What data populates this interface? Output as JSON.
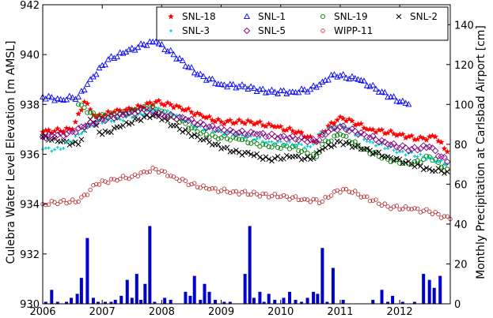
{
  "chart_data": {
    "type": "scatter",
    "title": "",
    "xlabel": "",
    "ylabel": "Culebra Water Level Elevation [m AMSL]",
    "y2label": "Monthly Precipitation at Carlsbad Airport [cm]",
    "xlim": [
      2006.0,
      2012.85
    ],
    "ylim": [
      930,
      942
    ],
    "y2lim": [
      0,
      150
    ],
    "xticks": [
      2006,
      2007,
      2008,
      2009,
      2010,
      2011,
      2012
    ],
    "yticks": [
      930,
      932,
      934,
      936,
      938,
      940,
      942
    ],
    "y2ticks": [
      0,
      20,
      40,
      60,
      80,
      100,
      120,
      140
    ],
    "grid": false,
    "legend_position": "top-right",
    "series": [
      {
        "name": "SNL-18",
        "marker": "star",
        "color": "#ff0000",
        "x": [
          2006.0,
          2006.5,
          2006.7,
          2006.9,
          2007.2,
          2007.5,
          2007.9,
          2008.3,
          2008.7,
          2009.0,
          2009.5,
          2009.9,
          2010.3,
          2010.6,
          2010.7,
          2011.0,
          2011.5,
          2012.0,
          2012.3,
          2012.6,
          2012.8
        ],
        "y": [
          936.9,
          937.0,
          938.1,
          937.5,
          937.7,
          937.8,
          938.1,
          937.9,
          937.5,
          937.3,
          937.3,
          937.1,
          936.9,
          936.5,
          936.9,
          937.5,
          937.0,
          936.8,
          936.6,
          936.7,
          936.1
        ]
      },
      {
        "name": "SNL-1",
        "marker": "triangle",
        "color": "#0000ff",
        "x": [
          2006.0,
          2006.3,
          2006.6,
          2006.8,
          2007.1,
          2007.4,
          2007.7,
          2007.9,
          2008.2,
          2008.6,
          2009.0,
          2009.4,
          2009.8,
          2010.2,
          2010.5,
          2010.7,
          2010.9,
          2011.3,
          2011.7,
          2012.0,
          2012.15
        ],
        "y": [
          938.3,
          938.2,
          938.3,
          939.0,
          939.8,
          940.1,
          940.4,
          940.5,
          940.0,
          939.2,
          938.8,
          938.7,
          938.5,
          938.5,
          938.6,
          938.9,
          939.2,
          939.0,
          938.5,
          938.1,
          938.0
        ]
      },
      {
        "name": "SNL-19",
        "marker": "circle",
        "color": "#008000",
        "x": [
          2006.6,
          2006.9,
          2007.3,
          2007.8,
          2008.2,
          2008.6,
          2008.9,
          2009.3,
          2009.8,
          2010.2,
          2010.6,
          2010.7,
          2011.0,
          2011.4,
          2011.8,
          2012.2,
          2012.5,
          2012.8
        ],
        "y": [
          938.0,
          937.5,
          937.6,
          937.9,
          937.5,
          936.9,
          936.7,
          936.6,
          936.3,
          936.3,
          935.9,
          936.4,
          936.8,
          936.2,
          935.8,
          935.6,
          935.9,
          935.4
        ]
      },
      {
        "name": "SNL-2",
        "marker": "x",
        "color": "#000000",
        "x": [
          2006.0,
          2006.3,
          2006.6,
          2006.8,
          2007.0,
          2007.3,
          2007.6,
          2007.9,
          2008.3,
          2008.6,
          2008.9,
          2009.2,
          2009.5,
          2009.8,
          2010.2,
          2010.5,
          2010.7,
          2011.0,
          2011.4,
          2011.8,
          2012.2,
          2012.5,
          2012.8
        ],
        "y": [
          936.7,
          936.5,
          936.4,
          937.4,
          936.8,
          937.1,
          937.4,
          937.6,
          937.0,
          936.7,
          936.4,
          936.1,
          936.0,
          935.8,
          935.9,
          935.8,
          936.2,
          936.5,
          936.2,
          935.9,
          935.6,
          935.4,
          935.3
        ]
      },
      {
        "name": "SNL-3",
        "marker": "dot",
        "color": "#00cccc",
        "x": [
          2006.0,
          2006.3,
          2006.6,
          2006.9,
          2007.3,
          2007.6,
          2007.9,
          2008.2,
          2008.6,
          2008.9,
          2009.3,
          2009.8,
          2010.2,
          2010.5,
          2010.7,
          2011.0,
          2011.5,
          2012.0,
          2012.4,
          2012.8
        ],
        "y": [
          936.2,
          936.2,
          936.8,
          937.3,
          937.4,
          937.6,
          937.8,
          937.6,
          937.1,
          936.9,
          936.8,
          936.5,
          936.4,
          936.3,
          936.9,
          937.2,
          936.5,
          936.1,
          935.9,
          935.6
        ]
      },
      {
        "name": "SNL-5",
        "marker": "diamond",
        "color": "#800080",
        "x": [
          2006.0,
          2006.4,
          2006.7,
          2007.0,
          2007.4,
          2007.7,
          2008.0,
          2008.4,
          2008.8,
          2009.2,
          2009.6,
          2010.0,
          2010.4,
          2010.6,
          2010.8,
          2011.0,
          2011.4,
          2011.8,
          2012.2,
          2012.5,
          2012.8
        ],
        "y": [
          936.7,
          936.8,
          937.1,
          937.4,
          937.6,
          937.8,
          937.6,
          937.4,
          937.1,
          936.9,
          936.8,
          936.7,
          936.6,
          936.5,
          936.9,
          937.1,
          936.8,
          936.4,
          936.2,
          936.3,
          935.7
        ]
      },
      {
        "name": "WIPP-11",
        "marker": "open-circle",
        "color": "#b22222",
        "x": [
          2006.0,
          2006.3,
          2006.6,
          2006.9,
          2007.2,
          2007.5,
          2007.7,
          2007.9,
          2008.2,
          2008.5,
          2008.8,
          2009.2,
          2009.6,
          2010.0,
          2010.4,
          2010.7,
          2010.9,
          2011.1,
          2011.4,
          2011.8,
          2012.2,
          2012.5,
          2012.85
        ],
        "y": [
          934.0,
          934.1,
          934.1,
          934.8,
          935.0,
          935.1,
          935.3,
          935.4,
          935.1,
          934.8,
          934.6,
          934.5,
          934.4,
          934.3,
          934.2,
          934.1,
          934.5,
          934.6,
          934.3,
          933.9,
          933.8,
          933.7,
          933.4
        ]
      }
    ],
    "precipitation": {
      "name": "Monthly Precipitation",
      "axis": "right",
      "color": "#0000cc",
      "months": [
        2006.05,
        2006.15,
        2006.25,
        2006.4,
        2006.48,
        2006.58,
        2006.65,
        2006.75,
        2006.85,
        2006.93,
        2007.05,
        2007.15,
        2007.22,
        2007.32,
        2007.42,
        2007.5,
        2007.58,
        2007.65,
        2007.72,
        2007.8,
        2007.88,
        2008.05,
        2008.15,
        2008.4,
        2008.48,
        2008.55,
        2008.65,
        2008.72,
        2008.8,
        2008.9,
        2009.05,
        2009.15,
        2009.4,
        2009.48,
        2009.55,
        2009.65,
        2009.72,
        2009.8,
        2009.9,
        2010.05,
        2010.15,
        2010.25,
        2010.35,
        2010.45,
        2010.55,
        2010.62,
        2010.7,
        2010.78,
        2010.88,
        2011.05,
        2011.55,
        2011.7,
        2011.8,
        2011.88,
        2012.05,
        2012.25,
        2012.4,
        2012.5,
        2012.58,
        2012.68
      ],
      "values": [
        1,
        7,
        1,
        1,
        3,
        5,
        13,
        33,
        3,
        1,
        1,
        1,
        2,
        4,
        12,
        3,
        15,
        2,
        10,
        39,
        1,
        3,
        2,
        6,
        4,
        14,
        2,
        10,
        6,
        2,
        1,
        1,
        15,
        39,
        3,
        6,
        1,
        5,
        2,
        3,
        6,
        2,
        1,
        3,
        6,
        5,
        28,
        1,
        18,
        2,
        2,
        7,
        1,
        4,
        1,
        1,
        15,
        12,
        8,
        14
      ]
    }
  }
}
